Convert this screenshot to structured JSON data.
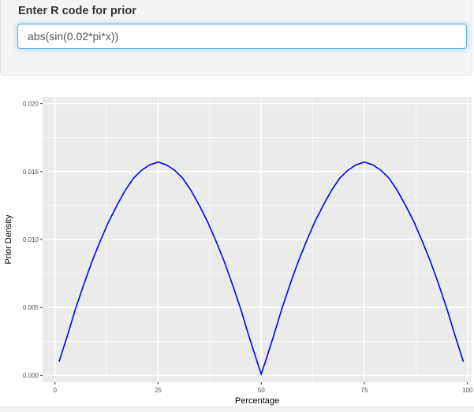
{
  "input_panel": {
    "label": "Enter R code for prior",
    "code_value": "abs(sin(0.02*pi*x))"
  },
  "chart_data": {
    "type": "line",
    "xlabel": "Percentage",
    "ylabel": "Prior Density",
    "xlim": [
      -3,
      101
    ],
    "ylim": [
      -0.0005,
      0.0205
    ],
    "x_ticks": [
      0,
      25,
      50,
      75,
      100
    ],
    "x_tick_labels": [
      "0",
      "25",
      "50",
      "75",
      "100"
    ],
    "y_ticks": [
      0.0,
      0.005,
      0.01,
      0.015,
      0.02
    ],
    "y_tick_labels": [
      "0.000",
      "0.005",
      "0.010",
      "0.015",
      "0.020"
    ],
    "grid": true,
    "series": [
      {
        "color": "#0000ff",
        "x": [
          1,
          3,
          5,
          7,
          9,
          11,
          13,
          15,
          17,
          19,
          21,
          23,
          25,
          27,
          29,
          31,
          33,
          35,
          37,
          39,
          41,
          43,
          45,
          47,
          49,
          50,
          51,
          53,
          55,
          57,
          59,
          61,
          63,
          65,
          67,
          69,
          71,
          73,
          75,
          77,
          79,
          81,
          83,
          85,
          87,
          89,
          91,
          93,
          95,
          97,
          99
        ],
        "y": [
          0.001,
          0.0029,
          0.0049,
          0.0067,
          0.0084,
          0.0099,
          0.0113,
          0.0125,
          0.0136,
          0.0145,
          0.0151,
          0.0155,
          0.0157,
          0.0155,
          0.0151,
          0.0145,
          0.0136,
          0.0125,
          0.0113,
          0.0099,
          0.0084,
          0.0067,
          0.0049,
          0.0029,
          0.001,
          0.0001,
          0.001,
          0.0029,
          0.0049,
          0.0067,
          0.0084,
          0.0099,
          0.0113,
          0.0125,
          0.0136,
          0.0145,
          0.0151,
          0.0155,
          0.0157,
          0.0155,
          0.0151,
          0.0145,
          0.0136,
          0.0125,
          0.0113,
          0.0099,
          0.0084,
          0.0067,
          0.0049,
          0.0029,
          0.001
        ]
      }
    ]
  }
}
